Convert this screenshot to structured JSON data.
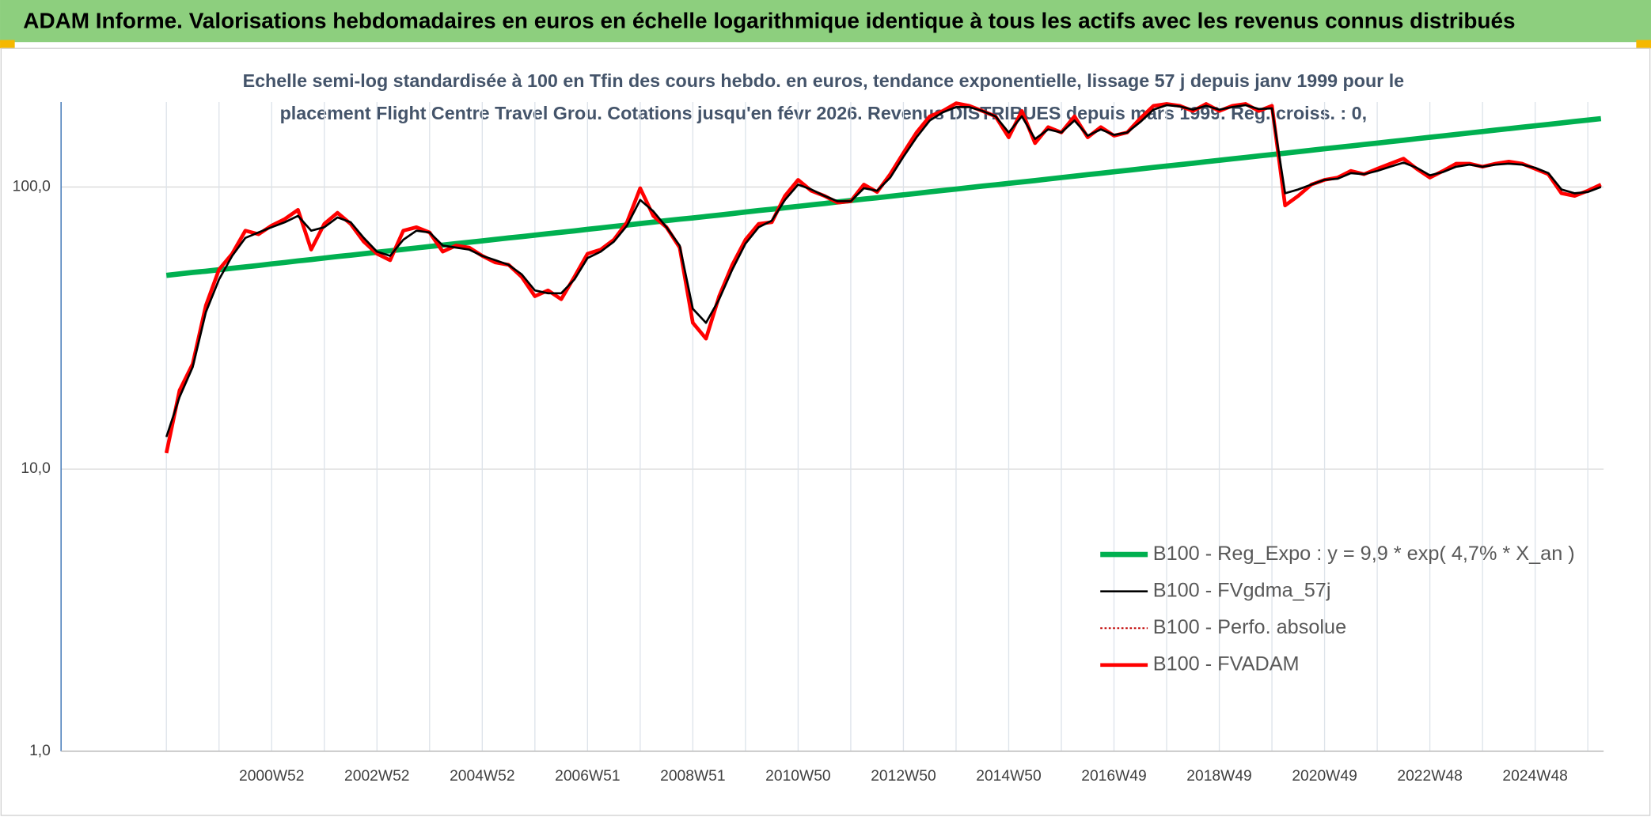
{
  "chart_data": {
    "type": "line",
    "title": "ADAM Informe. Valorisations hebdomadaires en euros en échelle logarithmique identique à tous les actifs avec les revenus connus distribués",
    "subtitle": [
      "Echelle semi-log standardisée à 100 en Tfin des cours hebdo. en euros, tendance exponentielle, lissage 57 j depuis janv 1999 pour le",
      "placement Flight Centre Travel Grou. Cotations jusqu'en févr 2026. Revenus DISTRIBUES depuis mars 1999. Reg. croiss. : 0,"
    ],
    "categories": [
      null,
      null,
      null,
      null,
      null,
      null,
      null,
      null,
      "2000W52",
      null,
      null,
      null,
      null,
      null,
      null,
      null,
      "2002W52",
      null,
      null,
      null,
      null,
      null,
      null,
      null,
      "2004W52",
      null,
      null,
      null,
      null,
      null,
      null,
      null,
      "2006W51",
      null,
      null,
      null,
      null,
      null,
      null,
      null,
      "2008W51",
      null,
      null,
      null,
      null,
      null,
      null,
      null,
      "2010W50",
      null,
      null,
      null,
      null,
      null,
      null,
      null,
      "2012W50",
      null,
      null,
      null,
      null,
      null,
      null,
      null,
      "2014W50",
      null,
      null,
      null,
      null,
      null,
      null,
      null,
      "2016W49",
      null,
      null,
      null,
      null,
      null,
      null,
      null,
      "2018W49",
      null,
      null,
      null,
      null,
      null,
      null,
      null,
      "2020W49",
      null,
      null,
      null,
      null,
      null,
      null,
      null,
      "2022W48",
      null,
      null,
      null,
      null,
      null,
      null,
      null,
      "2024W48",
      null,
      null,
      null,
      null,
      null
    ],
    "yscale": "log",
    "ylim": [
      1,
      200
    ],
    "yticks": [
      {
        "value": 1,
        "label": "1,0"
      },
      {
        "value": 10,
        "label": "10,0"
      },
      {
        "value": 100,
        "label": "100,0"
      }
    ],
    "grid": true,
    "legend": "right",
    "series": [
      {
        "name": "B100 - Reg_Expo : y = 9,9 * exp( 4,7% *  X_an )",
        "color": "#00b050",
        "values": [
          48.6,
          49.2,
          49.8,
          50.3,
          50.9,
          51.5,
          52.1,
          52.7,
          53.4,
          54.0,
          54.7,
          55.3,
          56.0,
          56.7,
          57.3,
          58.0,
          58.7,
          59.4,
          60.1,
          60.8,
          61.5,
          62.2,
          63.0,
          63.7,
          64.4,
          65.2,
          66.0,
          66.7,
          67.5,
          68.3,
          69.1,
          69.9,
          70.8,
          71.6,
          72.5,
          73.3,
          74.2,
          75.1,
          76.0,
          76.9,
          77.7,
          78.6,
          79.5,
          80.5,
          81.5,
          82.5,
          83.4,
          84.4,
          85.4,
          86.4,
          87.4,
          88.5,
          89.5,
          90.6,
          91.6,
          92.7,
          93.8,
          94.9,
          96.1,
          97.2,
          98.3,
          99.5,
          100.7,
          101.8,
          103.0,
          104.2,
          105.4,
          106.7,
          108.0,
          109.3,
          110.6,
          111.9,
          113.2,
          114.5,
          115.9,
          117.3,
          118.6,
          120.0,
          121.4,
          122.9,
          124.3,
          125.8,
          127.3,
          128.8,
          130.3,
          131.8,
          133.4,
          135.0,
          136.6,
          138.2,
          139.8,
          141.5,
          143.1,
          144.8,
          146.5,
          148.3,
          150.0,
          151.8,
          153.6,
          155.4,
          157.2,
          159.1,
          161.0,
          162.9,
          164.8,
          166.7,
          168.7,
          170.7,
          172.7,
          174.7
        ]
      },
      {
        "name": "B100 - FVgdma_57j",
        "color": "#000000",
        "values": [
          13,
          18,
          23,
          36,
          47,
          57,
          66,
          69,
          72,
          75,
          79,
          70,
          72,
          78,
          75,
          66,
          59,
          57,
          65,
          70,
          69,
          62,
          61,
          60,
          57,
          55,
          53,
          49,
          43,
          42,
          42,
          47,
          56,
          59,
          64,
          73,
          90,
          82,
          72,
          62,
          37,
          33,
          40,
          51,
          63,
          72,
          76,
          90,
          102,
          98,
          93,
          89,
          89,
          99,
          97,
          108,
          128,
          150,
          172,
          184,
          192,
          192,
          186,
          178,
          156,
          178,
          148,
          160,
          156,
          172,
          152,
          160,
          153,
          156,
          170,
          188,
          195,
          193,
          188,
          194,
          188,
          192,
          195,
          189,
          190,
          95,
          98,
          102,
          106,
          107,
          112,
          111,
          114,
          118,
          122,
          117,
          110,
          113,
          118,
          120,
          118,
          120,
          121,
          120,
          117,
          112,
          98,
          95,
          96,
          100
        ]
      },
      {
        "name": "B100 - Perfo. absolue",
        "color": "#c00000",
        "values": [
          11.4,
          19,
          23.6,
          38,
          51,
          58,
          70,
          68,
          73,
          77,
          83,
          60,
          74,
          81,
          74,
          64,
          58,
          55,
          70,
          72,
          69,
          59,
          62,
          61,
          57,
          54,
          53,
          48,
          41,
          43,
          40,
          48,
          58,
          60,
          65,
          75,
          99,
          79,
          72,
          61,
          33,
          29,
          41,
          53,
          65,
          74,
          75,
          93,
          106,
          97,
          93,
          88,
          89,
          102,
          96,
          111,
          132,
          156,
          178,
          186,
          198,
          194,
          186,
          178,
          150,
          186,
          143,
          163,
          156,
          178,
          150,
          163,
          152,
          156,
          175,
          194,
          197,
          194,
          186,
          197,
          186,
          194,
          197,
          186,
          194,
          86,
          93,
          102,
          106,
          108,
          114,
          111,
          116,
          121,
          126,
          116,
          108,
          114,
          121,
          121,
          118,
          121,
          123,
          121,
          116,
          111,
          95,
          93,
          97,
          102
        ]
      },
      {
        "name": "B100 - FVADAM",
        "color": "#ff0000",
        "values": [
          11.4,
          19,
          23.6,
          38,
          51,
          58,
          70,
          68,
          73,
          77,
          83,
          60,
          74,
          81,
          74,
          64,
          58,
          55,
          70,
          72,
          69,
          59,
          62,
          61,
          57,
          54,
          53,
          48,
          41,
          43,
          40,
          48,
          58,
          60,
          65,
          75,
          99,
          79,
          72,
          61,
          33,
          29,
          41,
          53,
          65,
          74,
          75,
          93,
          106,
          97,
          93,
          88,
          89,
          102,
          96,
          111,
          132,
          156,
          178,
          186,
          198,
          194,
          186,
          178,
          150,
          186,
          143,
          163,
          156,
          178,
          150,
          163,
          152,
          156,
          175,
          194,
          197,
          194,
          186,
          197,
          186,
          194,
          197,
          186,
          194,
          86,
          93,
          102,
          106,
          108,
          114,
          111,
          116,
          121,
          126,
          116,
          108,
          114,
          121,
          121,
          118,
          121,
          123,
          121,
          116,
          111,
          95,
          93,
          97,
          102
        ]
      }
    ]
  }
}
